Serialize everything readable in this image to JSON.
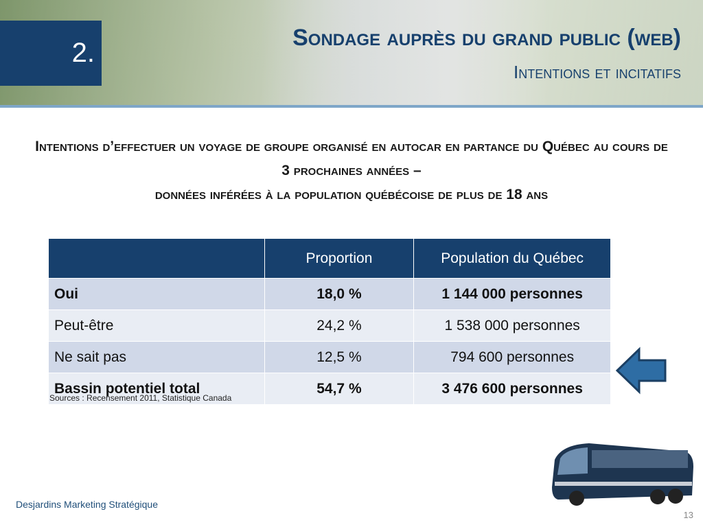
{
  "header": {
    "number": "2.",
    "title": "Sondage auprès du grand public (web)",
    "subtitle": "Intentions et incitatifs"
  },
  "heading": {
    "line1": "Intentions d’effectuer un voyage de groupe organisé en autocar en partance du Québec au cours de 3 prochaines années –",
    "line2": "données inférées à la population québécoise de plus de 18 ans"
  },
  "table": {
    "columns": [
      "Proportion",
      "Population du Québec"
    ],
    "rows": [
      [
        "Oui",
        "18,0 %",
        "1 144 000 personnes"
      ],
      [
        "Peut-être",
        "24,2 %",
        "1 538 000 personnes"
      ],
      [
        "Ne sait pas",
        "12,5 %",
        "794 600 personnes"
      ],
      [
        "Bassin potentiel total",
        "54,7 %",
        "3 476 600 personnes"
      ]
    ]
  },
  "source": "Sources : Recensement 2011, Statistique Canada",
  "footer": {
    "company": "Desjardins Marketing Stratégique",
    "page": "13"
  }
}
